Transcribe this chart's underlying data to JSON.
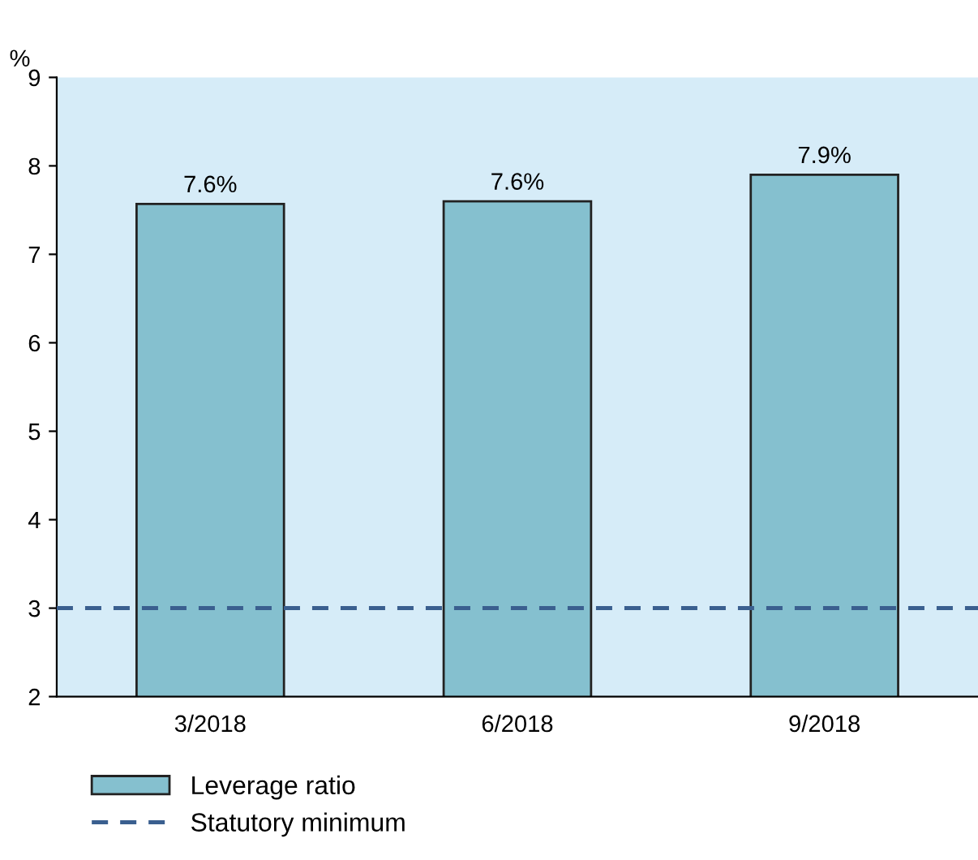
{
  "chart_data": {
    "type": "bar",
    "ylabel": "%",
    "categories": [
      "3/2018",
      "6/2018",
      "9/2018"
    ],
    "series": [
      {
        "name": "Leverage ratio",
        "color": "#85c0cf",
        "values": [
          7.57,
          7.6,
          7.9
        ],
        "value_labels": [
          "7.6%",
          "7.6%",
          "7.9%"
        ]
      }
    ],
    "ylim": [
      2,
      9
    ],
    "yticks": [
      2,
      3,
      4,
      5,
      6,
      7,
      8,
      9
    ],
    "grid": false,
    "legend": "bottom",
    "ref_lines": [
      {
        "axis": "y",
        "value": 3,
        "label": "Statutory minimum",
        "color": "#3a5f8f",
        "line_style": "dashed"
      }
    ]
  }
}
